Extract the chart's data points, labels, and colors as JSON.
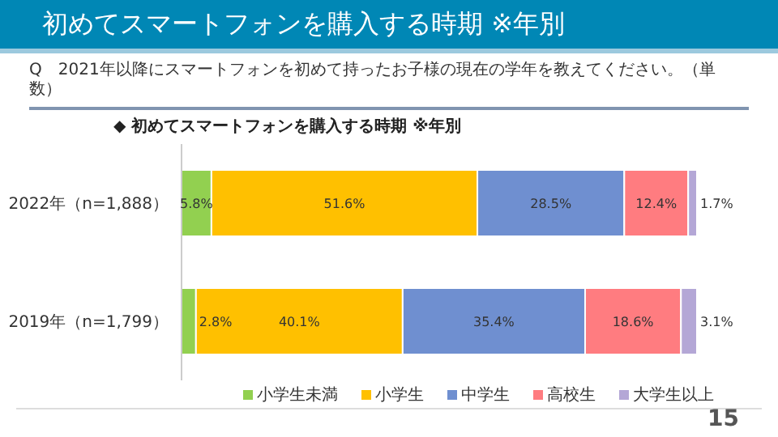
{
  "chart_data": {
    "type": "bar",
    "orientation": "horizontal",
    "stacked": true,
    "title": "初めてスマートフォンを購入する時期 ※年別",
    "subtitle": "Q　2021年以降にスマートフォンを初めて持ったお子様の現在の学年を教えてください。（単数）",
    "annotations": [
      "◆ 初めてスマートフォンを購入する時期 ※年別",
      "15"
    ],
    "categories": [
      "2022年（n=1,888）",
      "2019年（n=1,799）"
    ],
    "xlim": [
      0,
      100
    ],
    "tick_labels": "y",
    "grid": false,
    "legend": "bottom",
    "series": [
      {
        "name": "小学生未満",
        "color": "#92d050",
        "values": [
          5.8,
          2.8
        ],
        "value_labels": [
          "5.8%",
          "2.8%"
        ]
      },
      {
        "name": "小学生",
        "color": "#ffc000",
        "values": [
          51.6,
          40.1
        ],
        "value_labels": [
          "51.6%",
          "40.1%"
        ]
      },
      {
        "name": "中学生",
        "color": "#6f8fd0",
        "values": [
          28.5,
          35.4
        ],
        "value_labels": [
          "28.5%",
          "35.4%"
        ]
      },
      {
        "name": "高校生",
        "color": "#ff7c80",
        "values": [
          12.4,
          18.6
        ],
        "value_labels": [
          "12.4%",
          "18.6%"
        ]
      },
      {
        "name": "大学生以上",
        "color": "#b4a7d6",
        "values": [
          1.7,
          3.1
        ],
        "value_labels": [
          "1.7%",
          "3.1%"
        ]
      }
    ]
  }
}
